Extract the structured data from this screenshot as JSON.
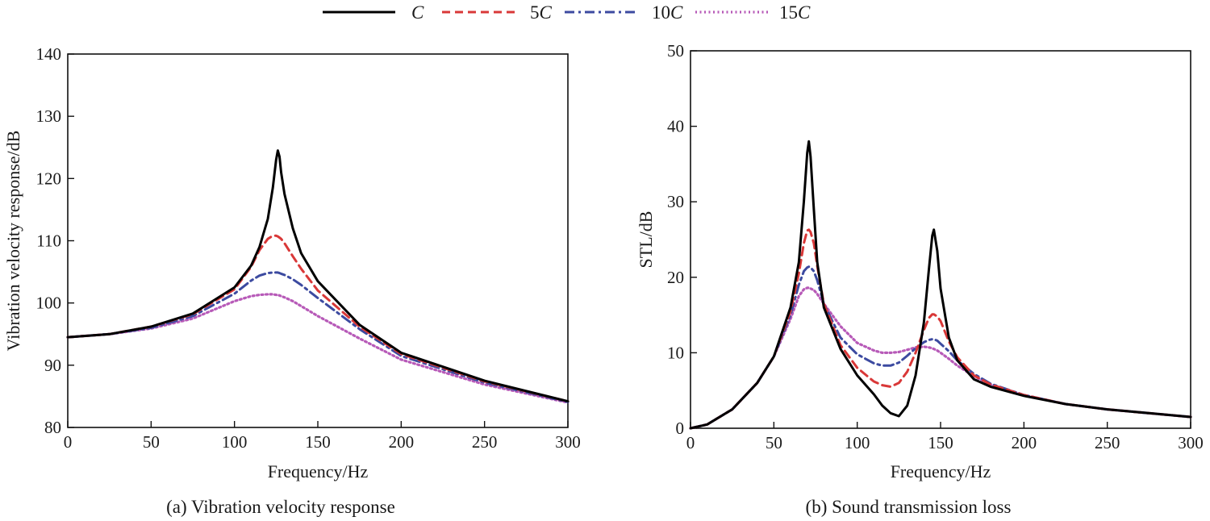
{
  "legend": {
    "items": [
      {
        "name": "C",
        "prefix": "",
        "symbol": "C",
        "color": "#000000",
        "dash": "solid"
      },
      {
        "name": "5C",
        "prefix": "5",
        "symbol": "C",
        "color": "#d93838",
        "dash": "dashed"
      },
      {
        "name": "10C",
        "prefix": "10",
        "symbol": "C",
        "color": "#3c4aa0",
        "dash": "dashdot"
      },
      {
        "name": "15C",
        "prefix": "15",
        "symbol": "C",
        "color": "#b75ab8",
        "dash": "dotted"
      }
    ]
  },
  "chart_data": [
    {
      "type": "line",
      "caption": "(a) Vibration velocity response",
      "xlabel": "Frequency/Hz",
      "ylabel": "Vibration velocity response/dB",
      "xlim": [
        0,
        300
      ],
      "ylim": [
        80,
        140
      ],
      "xticks": [
        "0",
        "50",
        "100",
        "150",
        "200",
        "250",
        "300"
      ],
      "yticks": [
        "80",
        "90",
        "100",
        "110",
        "120",
        "130",
        "140"
      ],
      "grid": false,
      "x": [
        0,
        25,
        50,
        75,
        100,
        110,
        115,
        120,
        123,
        125,
        126,
        127,
        128,
        130,
        135,
        140,
        150,
        175,
        200,
        250,
        300
      ],
      "series": [
        {
          "name": "C",
          "values": [
            94.5,
            95.0,
            96.2,
            98.3,
            102.5,
            106.0,
            109.0,
            113.5,
            118.5,
            123.0,
            124.5,
            123.5,
            121.0,
            117.5,
            112.0,
            108.0,
            103.5,
            96.5,
            92.0,
            87.5,
            84.2
          ]
        },
        {
          "name": "5C",
          "values": [
            94.5,
            95.0,
            96.2,
            98.2,
            102.2,
            105.8,
            108.5,
            110.3,
            110.8,
            110.8,
            110.7,
            110.5,
            110.3,
            109.6,
            107.5,
            105.5,
            102.0,
            96.2,
            91.8,
            87.4,
            84.2
          ]
        },
        {
          "name": "10C",
          "values": [
            94.5,
            95.0,
            96.0,
            97.9,
            101.5,
            103.6,
            104.4,
            104.8,
            104.9,
            104.9,
            104.9,
            104.8,
            104.7,
            104.5,
            103.8,
            102.9,
            100.8,
            95.8,
            91.5,
            87.2,
            84.1
          ]
        },
        {
          "name": "15C",
          "values": [
            94.5,
            95.0,
            95.9,
            97.5,
            100.3,
            101.1,
            101.3,
            101.4,
            101.4,
            101.3,
            101.3,
            101.2,
            101.1,
            100.9,
            100.3,
            99.5,
            97.9,
            94.3,
            90.9,
            86.9,
            84.0
          ]
        }
      ]
    },
    {
      "type": "line",
      "caption": "(b) Sound transmission loss",
      "xlabel": "Frequency/Hz",
      "ylabel": "STL/dB",
      "xlim": [
        0,
        300
      ],
      "ylim": [
        0,
        50
      ],
      "xticks": [
        "0",
        "50",
        "100",
        "150",
        "200",
        "250",
        "300"
      ],
      "yticks": [
        "0",
        "10",
        "20",
        "30",
        "40",
        "50"
      ],
      "grid": false,
      "x": [
        0,
        10,
        25,
        40,
        50,
        60,
        65,
        68,
        70,
        71,
        72,
        74,
        76,
        80,
        90,
        100,
        110,
        115,
        120,
        125,
        130,
        135,
        140,
        143,
        145,
        146,
        148,
        150,
        155,
        160,
        170,
        180,
        200,
        225,
        250,
        275,
        300
      ],
      "series": [
        {
          "name": "C",
          "values": [
            0,
            0.5,
            2.5,
            6.0,
            9.5,
            16.0,
            22.0,
            30.0,
            36.5,
            38.0,
            36.0,
            29.0,
            22.0,
            16.0,
            10.5,
            7.0,
            4.5,
            3.0,
            2.0,
            1.6,
            3.0,
            7.0,
            14.0,
            21.0,
            25.5,
            26.3,
            23.5,
            18.5,
            12.0,
            9.0,
            6.5,
            5.5,
            4.3,
            3.2,
            2.5,
            2.0,
            1.5
          ]
        },
        {
          "name": "5C",
          "values": [
            0,
            0.5,
            2.5,
            6.0,
            9.5,
            15.5,
            20.5,
            24.5,
            26.2,
            26.3,
            26.0,
            24.5,
            21.5,
            16.5,
            11.0,
            8.0,
            6.2,
            5.7,
            5.5,
            6.0,
            7.5,
            10.0,
            13.0,
            14.6,
            15.1,
            15.1,
            14.8,
            14.2,
            11.5,
            9.4,
            7.0,
            5.8,
            4.4,
            3.2,
            2.5,
            2.0,
            1.5
          ]
        },
        {
          "name": "10C",
          "values": [
            0,
            0.5,
            2.5,
            6.0,
            9.5,
            15.0,
            19.0,
            20.8,
            21.3,
            21.4,
            21.3,
            20.8,
            19.6,
            16.5,
            12.0,
            9.8,
            8.6,
            8.3,
            8.3,
            8.7,
            9.6,
            10.6,
            11.4,
            11.7,
            11.8,
            11.8,
            11.6,
            11.2,
            10.2,
            9.0,
            7.2,
            5.9,
            4.4,
            3.2,
            2.5,
            2.0,
            1.5
          ]
        },
        {
          "name": "15C",
          "values": [
            0,
            0.5,
            2.5,
            6.0,
            9.5,
            14.5,
            17.5,
            18.4,
            18.6,
            18.6,
            18.5,
            18.3,
            17.8,
            16.5,
            13.5,
            11.3,
            10.3,
            10.0,
            10.0,
            10.1,
            10.4,
            10.7,
            10.8,
            10.7,
            10.6,
            10.5,
            10.3,
            10.0,
            9.2,
            8.3,
            6.9,
            5.8,
            4.4,
            3.2,
            2.5,
            2.0,
            1.5
          ]
        }
      ]
    }
  ]
}
